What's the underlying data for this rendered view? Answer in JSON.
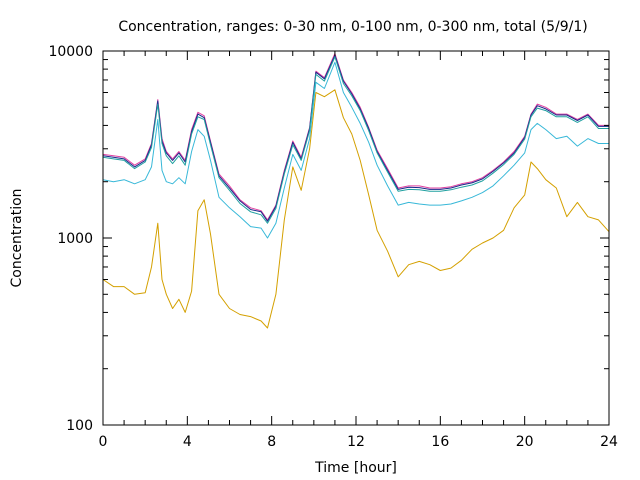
{
  "chart_data": {
    "type": "line",
    "title": "Concentration, ranges: 0-30 nm, 0-100 nm, 0-300 nm, total (5/9/1)",
    "xlabel": "Time [hour]",
    "ylabel": "Concentration",
    "xlim": [
      0,
      24
    ],
    "ylim": [
      100,
      10000
    ],
    "yscale": "log",
    "grid": false,
    "legend": "none",
    "x_ticks": [
      "0",
      "4",
      "8",
      "12",
      "16",
      "20",
      "24"
    ],
    "y_ticks": [
      "100",
      "1000",
      "10000"
    ],
    "x": [
      0,
      0.5,
      1,
      1.5,
      2,
      2.3,
      2.6,
      2.8,
      3.0,
      3.3,
      3.6,
      3.9,
      4.2,
      4.5,
      4.8,
      5.1,
      5.5,
      6.0,
      6.5,
      7.0,
      7.5,
      7.8,
      8.2,
      8.6,
      9.0,
      9.4,
      9.8,
      10.1,
      10.5,
      11.0,
      11.4,
      11.8,
      12.2,
      12.6,
      13.0,
      13.5,
      14.0,
      14.5,
      15.0,
      15.5,
      16.0,
      16.5,
      17.0,
      17.5,
      18.0,
      18.5,
      19.0,
      19.5,
      20.0,
      20.3,
      20.6,
      21.0,
      21.5,
      22.0,
      22.5,
      23.0,
      23.5,
      24.0
    ],
    "series": [
      {
        "color": "#e040a0",
        "values": [
          2800,
          2750,
          2700,
          2450,
          2650,
          3200,
          5500,
          3400,
          2900,
          2650,
          2900,
          2600,
          3800,
          4700,
          4500,
          3300,
          2200,
          1900,
          1600,
          1450,
          1400,
          1250,
          1500,
          2300,
          3300,
          2700,
          3900,
          7800,
          7200,
          9700,
          7000,
          6000,
          5000,
          3900,
          2950,
          2350,
          1850,
          1900,
          1900,
          1850,
          1850,
          1880,
          1950,
          2000,
          2100,
          2300,
          2550,
          2900,
          3500,
          4600,
          5200,
          5000,
          4600,
          4600,
          4300,
          4600,
          4000,
          4000
        ]
      },
      {
        "color": "#1a2a8c",
        "values": [
          2750,
          2700,
          2650,
          2400,
          2600,
          3150,
          5400,
          3300,
          2850,
          2600,
          2850,
          2550,
          3700,
          4600,
          4400,
          3250,
          2150,
          1850,
          1580,
          1420,
          1380,
          1230,
          1480,
          2250,
          3250,
          2650,
          3850,
          7700,
          7100,
          9500,
          6900,
          5900,
          4900,
          3850,
          2900,
          2300,
          1820,
          1870,
          1860,
          1820,
          1820,
          1850,
          1920,
          1970,
          2070,
          2270,
          2520,
          2850,
          3450,
          4550,
          5100,
          4900,
          4550,
          4550,
          4250,
          4550,
          3950,
          3950
        ]
      },
      {
        "color": "#20a0a0",
        "values": [
          2700,
          2650,
          2600,
          2350,
          2550,
          3050,
          5200,
          3200,
          2750,
          2500,
          2750,
          2450,
          3600,
          4450,
          4300,
          3150,
          2100,
          1800,
          1530,
          1380,
          1330,
          1200,
          1440,
          2200,
          3150,
          2600,
          3750,
          7500,
          6900,
          9300,
          6700,
          5750,
          4800,
          3750,
          2850,
          2250,
          1780,
          1820,
          1810,
          1780,
          1780,
          1810,
          1870,
          1920,
          2020,
          2220,
          2470,
          2800,
          3380,
          4450,
          4950,
          4800,
          4450,
          4450,
          4150,
          4450,
          3850,
          3850
        ]
      },
      {
        "color": "#38b8d8",
        "values": [
          2050,
          2000,
          2050,
          1950,
          2050,
          2400,
          4300,
          2300,
          2000,
          1950,
          2100,
          1950,
          2900,
          3800,
          3500,
          2600,
          1650,
          1450,
          1300,
          1150,
          1130,
          1000,
          1200,
          1850,
          2800,
          2300,
          3400,
          6800,
          6300,
          8700,
          6000,
          5000,
          4100,
          3250,
          2450,
          1900,
          1500,
          1550,
          1520,
          1500,
          1500,
          1520,
          1580,
          1650,
          1750,
          1900,
          2150,
          2450,
          2850,
          3800,
          4100,
          3800,
          3400,
          3500,
          3100,
          3400,
          3200,
          3200
        ]
      },
      {
        "color": "#d4a000",
        "values": [
          600,
          550,
          550,
          500,
          510,
          700,
          1200,
          600,
          500,
          420,
          470,
          400,
          520,
          1400,
          1600,
          1050,
          500,
          420,
          390,
          380,
          360,
          330,
          500,
          1250,
          2400,
          1800,
          3000,
          6000,
          5700,
          6200,
          4400,
          3600,
          2600,
          1700,
          1100,
          850,
          620,
          720,
          750,
          720,
          670,
          690,
          760,
          870,
          940,
          1000,
          1100,
          1450,
          1700,
          2550,
          2350,
          2050,
          1850,
          1300,
          1550,
          1300,
          1250,
          1080
        ]
      }
    ]
  }
}
